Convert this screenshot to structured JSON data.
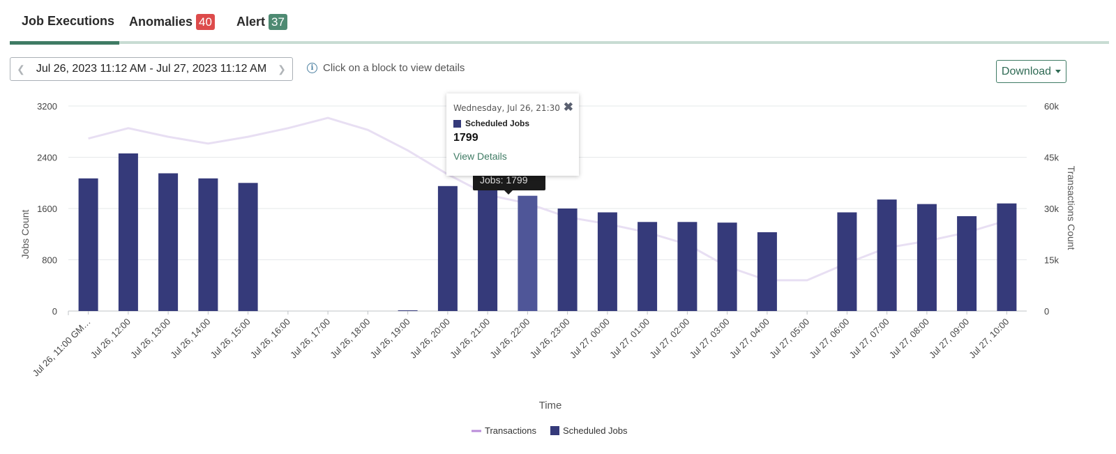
{
  "tabs": [
    {
      "label": "Job Executions",
      "active": true
    },
    {
      "label": "Anomalies",
      "badge": "40",
      "badge_color": "#dd4b4b"
    },
    {
      "label": "Alert",
      "badge": "37",
      "badge_color": "#4e8a72"
    }
  ],
  "toolbar": {
    "date_range": "Jul 26, 2023 11:12 AM - Jul 27, 2023 11:12 AM",
    "prev_icon": "chevron-left-icon",
    "next_icon": "chevron-right-icon",
    "info_text": "Click on a block to view details",
    "download_label": "Download"
  },
  "popup": {
    "date": "Wednesday, Jul 26, 21:30",
    "series": "Scheduled Jobs",
    "value": "1799",
    "link": "View Details",
    "close_icon": "close-icon"
  },
  "tooltip": {
    "text": "Jobs: 1799"
  },
  "colors": {
    "accent": "#3f7b64",
    "bar": "#353a7a",
    "bar_highlight": "#4f5698",
    "line": "#e8dff3"
  },
  "chart_data": {
    "type": "bar",
    "xlabel": "Time",
    "ylabel": "Jobs Count",
    "y2label": "Transactions Count",
    "ylim": [
      0,
      3200
    ],
    "yticks": [
      "0",
      "800",
      "1600",
      "2400",
      "3200"
    ],
    "y2lim": [
      0,
      60000
    ],
    "y2ticks": [
      "0",
      "15k",
      "30k",
      "45k",
      "60k"
    ],
    "categories": [
      "Jul 26, 11:00 GM…",
      "Jul 26, 12:00",
      "Jul 26, 13:00",
      "Jul 26, 14:00",
      "Jul 26, 15:00",
      "Jul 26, 16:00",
      "Jul 26, 17:00",
      "Jul 26, 18:00",
      "Jul 26, 19:00",
      "Jul 26, 20:00",
      "Jul 26, 21:00",
      "Jul 26, 22:00",
      "Jul 26, 23:00",
      "Jul 27, 00:00",
      "Jul 27, 01:00",
      "Jul 27, 02:00",
      "Jul 27, 03:00",
      "Jul 27, 04:00",
      "Jul 27, 05:00",
      "Jul 27, 06:00",
      "Jul 27, 07:00",
      "Jul 27, 08:00",
      "Jul 27, 09:00",
      "Jul 27, 10:00"
    ],
    "series": [
      {
        "name": "Scheduled Jobs",
        "type": "bar",
        "axis": "left",
        "values": [
          2070,
          2460,
          2150,
          2070,
          2000,
          0,
          0,
          0,
          10,
          1950,
          1920,
          1799,
          1600,
          1540,
          1390,
          1390,
          1380,
          1230,
          0,
          1540,
          1740,
          1670,
          1480,
          1680
        ]
      },
      {
        "name": "Transactions",
        "type": "line",
        "axis": "right",
        "values": [
          50500,
          53500,
          51000,
          49000,
          51000,
          53500,
          56500,
          53000,
          47000,
          40000,
          34000,
          31500,
          27500,
          25500,
          23000,
          19500,
          13000,
          9000,
          9000,
          14000,
          18500,
          20500,
          23000,
          26500
        ]
      }
    ],
    "highlight_index": 11,
    "legend": "bottom-center"
  }
}
